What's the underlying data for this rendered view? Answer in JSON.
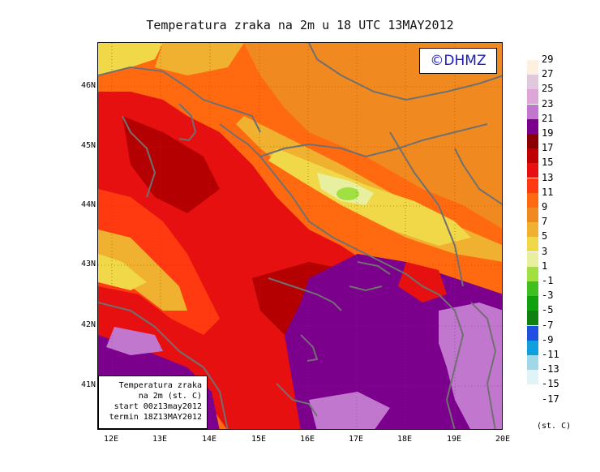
{
  "title": "Temperatura zraka na 2m u 18 UTC 13MAY2012",
  "copyright": "©DHMZ",
  "info_box": {
    "line1": "Temperatura zraka",
    "line2": "na 2m (st. C)",
    "line3": "start 00z13may2012",
    "line4": "termin 18Z13MAY2012"
  },
  "axes": {
    "lat_labels": [
      "46N",
      "45N",
      "44N",
      "43N",
      "42N",
      "41N"
    ],
    "lon_labels": [
      "12E",
      "13E",
      "14E",
      "15E",
      "16E",
      "17E",
      "18E",
      "19E",
      "20E"
    ]
  },
  "legend": {
    "unit": "(st. C)",
    "labels": [
      "29",
      "27",
      "25",
      "23",
      "21",
      "19",
      "17",
      "15",
      "13",
      "11",
      "9",
      "7",
      "5",
      "3",
      "1",
      "-1",
      "-3",
      "-5",
      "-7",
      "-9",
      "-11",
      "-13",
      "-15",
      "-17"
    ],
    "colors": [
      "#fdf0e0",
      "#e2c8dd",
      "#dca6d9",
      "#c277cf",
      "#7b008b",
      "#8a0000",
      "#c00000",
      "#e61010",
      "#ff3a10",
      "#ff6a10",
      "#f08a20",
      "#f0b030",
      "#f0d848",
      "#e8f0a0",
      "#a0e040",
      "#40c020",
      "#10a010",
      "#108010",
      "#2050e0",
      "#10a0e0",
      "#a0d8e8",
      "#e0f4f8"
    ]
  },
  "colors": {
    "sea_purple": "#7b008b",
    "sea_light_purple": "#c277cf",
    "dark_red": "#b40000",
    "red": "#e61010",
    "orange_red": "#ff3a10",
    "orange": "#ff6a10",
    "light_orange": "#f08a20",
    "yellow_orange": "#f0b030",
    "yellow": "#f0d848",
    "pale_yellow": "#e8f0a0",
    "green": "#a0e040",
    "border_line": "#707070",
    "copyright_text": "#1b1bb8"
  }
}
